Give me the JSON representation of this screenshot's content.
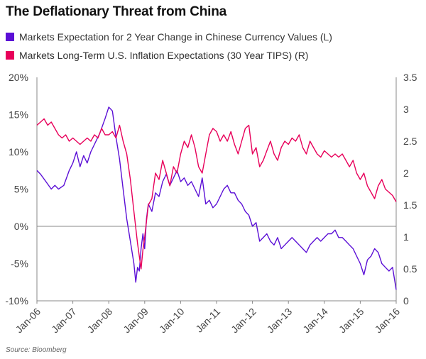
{
  "title": "The Deflationary Threat from China",
  "source": "Source: Bloomberg",
  "colors": {
    "series1": "#5b0fd6",
    "series2": "#e8005a",
    "zero_line": "#888888",
    "axis": "#888888"
  },
  "chart_data": {
    "type": "line",
    "title": "The Deflationary Threat from China",
    "grid": false,
    "legend_position": "top-left",
    "x_ticks": [
      "Jan-06",
      "Jan-07",
      "Jan-08",
      "Jan-09",
      "Jan-10",
      "Jan-11",
      "Jan-12",
      "Jan-13",
      "Jan-14",
      "Jan-15",
      "Jan-16"
    ],
    "x_range": [
      2006.0,
      2016.0
    ],
    "y_left": {
      "range": [
        -10,
        20
      ],
      "ticks": [
        20,
        15,
        10,
        5,
        0,
        -5,
        -10
      ],
      "tick_labels": [
        "20%",
        "15%",
        "10%",
        "5%",
        "0%",
        "-5%",
        "-10%"
      ]
    },
    "y_right": {
      "range": [
        0,
        3.5
      ],
      "ticks": [
        3.5,
        3,
        2.5,
        2,
        1.5,
        1,
        0.5,
        0
      ],
      "tick_labels": [
        "3.5",
        "3",
        "2.5",
        "2",
        "1.5",
        "1",
        "0.5",
        "0"
      ]
    },
    "series": [
      {
        "name": "Markets Expectation for 2 Year Change in Chinese Currency Values (L)",
        "axis": "left",
        "color": "#5b0fd6",
        "x": [
          2006.0,
          2006.1,
          2006.25,
          2006.4,
          2006.5,
          2006.6,
          2006.75,
          2006.9,
          2007.0,
          2007.1,
          2007.2,
          2007.3,
          2007.4,
          2007.5,
          2007.6,
          2007.75,
          2007.9,
          2008.0,
          2008.1,
          2008.2,
          2008.3,
          2008.4,
          2008.5,
          2008.6,
          2008.7,
          2008.75,
          2008.8,
          2008.85,
          2008.9,
          2008.95,
          2009.0,
          2009.05,
          2009.1,
          2009.2,
          2009.3,
          2009.4,
          2009.5,
          2009.6,
          2009.7,
          2009.8,
          2009.9,
          2010.0,
          2010.1,
          2010.2,
          2010.3,
          2010.4,
          2010.5,
          2010.6,
          2010.7,
          2010.8,
          2010.9,
          2011.0,
          2011.1,
          2011.2,
          2011.3,
          2011.4,
          2011.5,
          2011.6,
          2011.7,
          2011.8,
          2011.9,
          2012.0,
          2012.1,
          2012.2,
          2012.3,
          2012.4,
          2012.5,
          2012.6,
          2012.7,
          2012.8,
          2012.9,
          2013.0,
          2013.1,
          2013.2,
          2013.3,
          2013.4,
          2013.5,
          2013.6,
          2013.7,
          2013.8,
          2013.9,
          2014.0,
          2014.1,
          2014.2,
          2014.3,
          2014.4,
          2014.5,
          2014.6,
          2014.7,
          2014.8,
          2014.9,
          2015.0,
          2015.1,
          2015.2,
          2015.3,
          2015.4,
          2015.5,
          2015.6,
          2015.7,
          2015.8,
          2015.9,
          2016.0
        ],
        "y": [
          7.5,
          7.0,
          6.0,
          5.0,
          5.5,
          5.0,
          5.5,
          7.5,
          8.5,
          10.0,
          8.0,
          9.5,
          8.5,
          10.0,
          11.0,
          12.5,
          14.5,
          16.0,
          15.5,
          12.0,
          9.0,
          5.0,
          1.0,
          -2.0,
          -5.0,
          -7.5,
          -5.5,
          -6.0,
          -3.0,
          -1.0,
          -3.0,
          1.0,
          3.0,
          2.0,
          4.5,
          4.0,
          6.0,
          7.0,
          5.5,
          6.5,
          7.5,
          6.0,
          6.5,
          5.5,
          6.0,
          5.0,
          4.0,
          6.5,
          3.0,
          3.5,
          2.5,
          3.0,
          4.0,
          5.0,
          5.5,
          4.5,
          4.5,
          3.5,
          3.0,
          2.0,
          1.5,
          0.0,
          0.5,
          -2.0,
          -1.5,
          -1.0,
          -2.0,
          -2.5,
          -1.5,
          -3.0,
          -2.5,
          -2.0,
          -1.5,
          -2.0,
          -2.5,
          -3.0,
          -3.5,
          -2.5,
          -2.0,
          -1.5,
          -2.0,
          -1.5,
          -1.0,
          -1.0,
          -0.5,
          -1.5,
          -1.5,
          -2.0,
          -2.5,
          -3.0,
          -4.0,
          -5.0,
          -6.5,
          -4.5,
          -4.0,
          -3.0,
          -3.5,
          -5.0,
          -5.5,
          -6.0,
          -5.5,
          -8.5
        ]
      },
      {
        "name": "Markets Long-Term U.S. Inflation Expectations (30 Year TIPS) (R)",
        "axis": "right",
        "color": "#e8005a",
        "x": [
          2006.0,
          2006.1,
          2006.2,
          2006.3,
          2006.4,
          2006.5,
          2006.6,
          2006.7,
          2006.8,
          2006.9,
          2007.0,
          2007.1,
          2007.2,
          2007.3,
          2007.4,
          2007.5,
          2007.6,
          2007.7,
          2007.8,
          2007.9,
          2008.0,
          2008.1,
          2008.2,
          2008.3,
          2008.4,
          2008.5,
          2008.6,
          2008.7,
          2008.8,
          2008.9,
          2008.95,
          2009.0,
          2009.1,
          2009.2,
          2009.3,
          2009.4,
          2009.5,
          2009.6,
          2009.7,
          2009.8,
          2009.9,
          2010.0,
          2010.1,
          2010.2,
          2010.3,
          2010.4,
          2010.5,
          2010.6,
          2010.7,
          2010.8,
          2010.9,
          2011.0,
          2011.1,
          2011.2,
          2011.3,
          2011.4,
          2011.5,
          2011.6,
          2011.7,
          2011.8,
          2011.9,
          2012.0,
          2012.1,
          2012.2,
          2012.3,
          2012.4,
          2012.5,
          2012.6,
          2012.7,
          2012.8,
          2012.9,
          2013.0,
          2013.1,
          2013.2,
          2013.3,
          2013.4,
          2013.5,
          2013.6,
          2013.7,
          2013.8,
          2013.9,
          2014.0,
          2014.1,
          2014.2,
          2014.3,
          2014.4,
          2014.5,
          2014.6,
          2014.7,
          2014.8,
          2014.9,
          2015.0,
          2015.1,
          2015.2,
          2015.3,
          2015.4,
          2015.5,
          2015.6,
          2015.7,
          2015.8,
          2015.9,
          2016.0
        ],
        "y": [
          2.75,
          2.8,
          2.85,
          2.75,
          2.8,
          2.7,
          2.6,
          2.55,
          2.6,
          2.5,
          2.55,
          2.5,
          2.45,
          2.5,
          2.55,
          2.5,
          2.6,
          2.55,
          2.7,
          2.6,
          2.6,
          2.65,
          2.55,
          2.75,
          2.5,
          2.3,
          1.9,
          1.4,
          0.9,
          0.5,
          0.8,
          1.0,
          1.5,
          1.6,
          2.0,
          1.9,
          2.2,
          2.0,
          1.8,
          2.1,
          2.0,
          2.3,
          2.5,
          2.4,
          2.6,
          2.4,
          2.1,
          2.0,
          2.3,
          2.6,
          2.7,
          2.65,
          2.5,
          2.6,
          2.5,
          2.65,
          2.45,
          2.3,
          2.5,
          2.7,
          2.75,
          2.3,
          2.4,
          2.1,
          2.2,
          2.35,
          2.5,
          2.3,
          2.2,
          2.4,
          2.5,
          2.45,
          2.55,
          2.5,
          2.6,
          2.4,
          2.3,
          2.5,
          2.4,
          2.3,
          2.25,
          2.35,
          2.3,
          2.25,
          2.3,
          2.25,
          2.3,
          2.2,
          2.1,
          2.2,
          2.0,
          1.9,
          2.0,
          1.8,
          1.7,
          1.6,
          1.8,
          1.9,
          1.75,
          1.7,
          1.65,
          1.55
        ]
      }
    ]
  }
}
